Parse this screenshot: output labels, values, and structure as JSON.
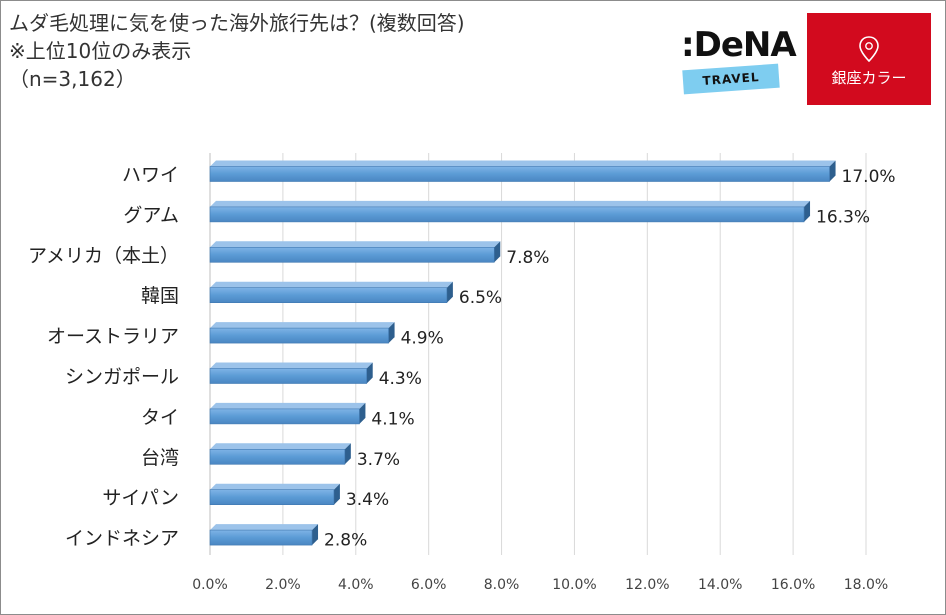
{
  "title": {
    "line1": "ムダ毛処理に気を使った海外旅行先は？(複数回答)",
    "line2": "※上位10位のみ表示",
    "line3": "（n=3,162）"
  },
  "logos": {
    "dena_word": ":DeNA",
    "dena_tag": "TRAVEL",
    "ginza_text": "銀座カラー",
    "ginza_icon": "location-pin-icon"
  },
  "colors": {
    "bar": "#5b9bd5",
    "bar_dark": "#2e5f8e",
    "ginza_red": "#d20a1e",
    "dena_blue": "#7ecdf0"
  },
  "chart_data": {
    "type": "bar",
    "orientation": "horizontal",
    "categories": [
      "ハワイ",
      "グアム",
      "アメリカ（本土）",
      "韓国",
      "オーストラリア",
      "シンガポール",
      "タイ",
      "台湾",
      "サイパン",
      "インドネシア"
    ],
    "values": [
      17.0,
      16.3,
      7.8,
      6.5,
      4.9,
      4.3,
      4.1,
      3.7,
      3.4,
      2.8
    ],
    "value_labels": [
      "17.0%",
      "16.3%",
      "7.8%",
      "6.5%",
      "4.9%",
      "4.3%",
      "4.1%",
      "3.7%",
      "3.4%",
      "2.8%"
    ],
    "x_ticks": [
      "0.0%",
      "2.0%",
      "4.0%",
      "6.0%",
      "8.0%",
      "10.0%",
      "12.0%",
      "14.0%",
      "16.0%",
      "18.0%"
    ],
    "xlim": [
      0,
      18
    ],
    "grid": true,
    "legend": "none"
  }
}
